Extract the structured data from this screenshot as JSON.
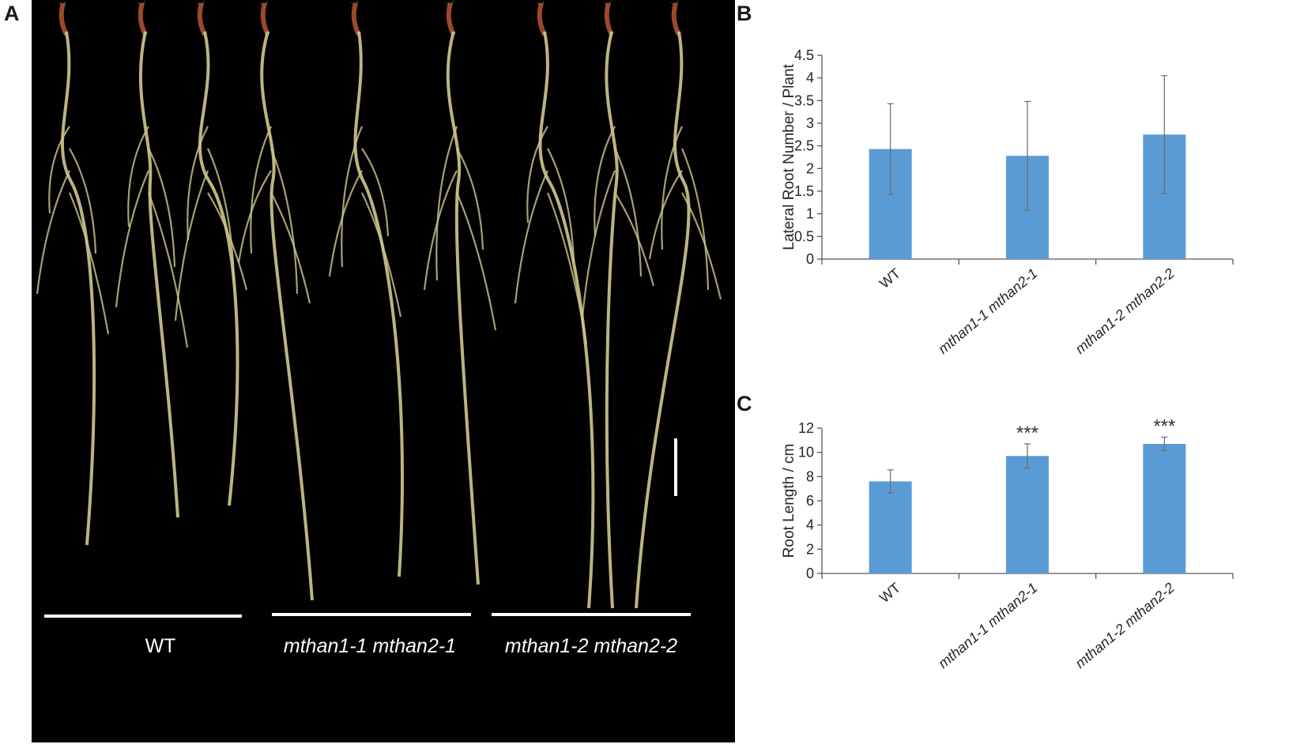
{
  "figure": {
    "panel_labels": [
      "A",
      "B",
      "C"
    ]
  },
  "photo": {
    "genotype_labels": [
      "WT",
      "mthan1-1 mthan2-1",
      "mthan1-2 mthan2-2"
    ],
    "background_color": "#000000",
    "root_color": "#cfc98e",
    "stem_color": "#9a4a2a",
    "leaf_color": "#3f8a2e"
  },
  "chart_data": [
    {
      "type": "bar",
      "panel": "B",
      "categories": [
        "WT",
        "mthan1-1 mthan2-1",
        "mthan1-2 mthan2-2"
      ],
      "values": [
        2.43,
        2.28,
        2.75
      ],
      "errors": [
        1.0,
        1.2,
        1.3
      ],
      "annotations": [
        "",
        "",
        ""
      ],
      "ylabel": "Lateral Root Number / Plant",
      "xlabel": "",
      "ylim": [
        0,
        4.5
      ],
      "yticks": [
        "0",
        "0.5",
        "1",
        "1.5",
        "2",
        "2.5",
        "3",
        "3.5",
        "4",
        "4.5"
      ],
      "bar_color": "#5b9bd5",
      "grid": false,
      "legend": "none"
    },
    {
      "type": "bar",
      "panel": "C",
      "categories": [
        "WT",
        "mthan1-1 mthan2-1",
        "mthan1-2 mthan2-2"
      ],
      "values": [
        7.6,
        9.7,
        10.7
      ],
      "errors": [
        0.95,
        1.0,
        0.55
      ],
      "annotations": [
        "",
        "***",
        "***"
      ],
      "ylabel": "Root Length / cm",
      "xlabel": "",
      "ylim": [
        0,
        12
      ],
      "yticks": [
        "0",
        "2",
        "4",
        "6",
        "8",
        "10",
        "12"
      ],
      "bar_color": "#5b9bd5",
      "grid": false,
      "legend": "none"
    }
  ]
}
